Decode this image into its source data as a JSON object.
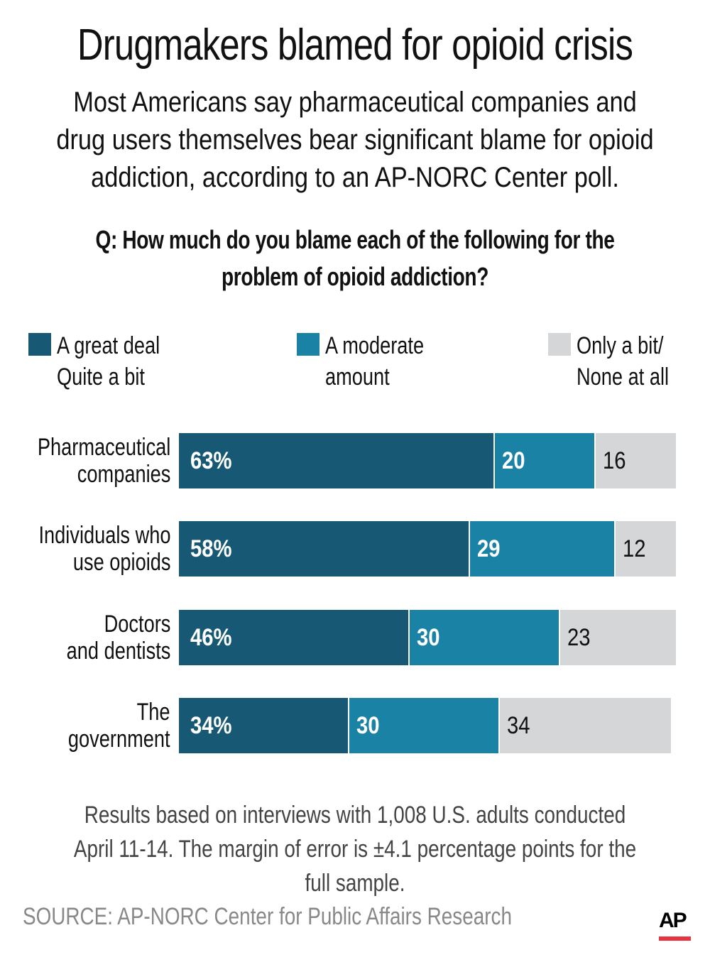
{
  "title": "Drugmakers blamed for opioid crisis",
  "subtitle": "Most Americans say pharmaceutical companies and drug users themselves bear significant blame for opioid addiction,  according to an AP-NORC Center poll.",
  "question": "Q: How much do you blame each of the following for the problem of opioid addiction?",
  "note": "Results based on interviews with 1,008 U.S. adults conducted April 11-14. The margin of error is ±4.1 percentage points for the full sample.",
  "source": "SOURCE: AP-NORC Center for Public Affairs Research",
  "logo": {
    "text": "AP",
    "accent_color": "#e5333f"
  },
  "chart_data": {
    "type": "bar",
    "orientation": "horizontal",
    "stacked": true,
    "title": "Drugmakers blamed for opioid crisis",
    "xlabel": "",
    "ylabel": "",
    "xlim": [
      0,
      100
    ],
    "grid": false,
    "legend_position": "top",
    "categories": [
      "Pharmaceutical\ncompanies",
      "Individuals who\nuse opioids",
      "Doctors\nand dentists",
      "The\ngovernment"
    ],
    "series": [
      {
        "name": "A great deal\nQuite a bit",
        "color": "#175874",
        "values": [
          63,
          58,
          46,
          34
        ],
        "labels": [
          "63%",
          "58%",
          "46%",
          "34%"
        ]
      },
      {
        "name": "A moderate\namount",
        "color": "#1a82a5",
        "values": [
          20,
          29,
          30,
          30
        ],
        "labels": [
          "20",
          "29",
          "30",
          "30"
        ]
      },
      {
        "name": "Only a bit/\nNone at all",
        "color": "#d4d6d7",
        "values": [
          16,
          12,
          23,
          34
        ],
        "labels": [
          "16",
          "12",
          "23",
          "34"
        ]
      }
    ]
  }
}
